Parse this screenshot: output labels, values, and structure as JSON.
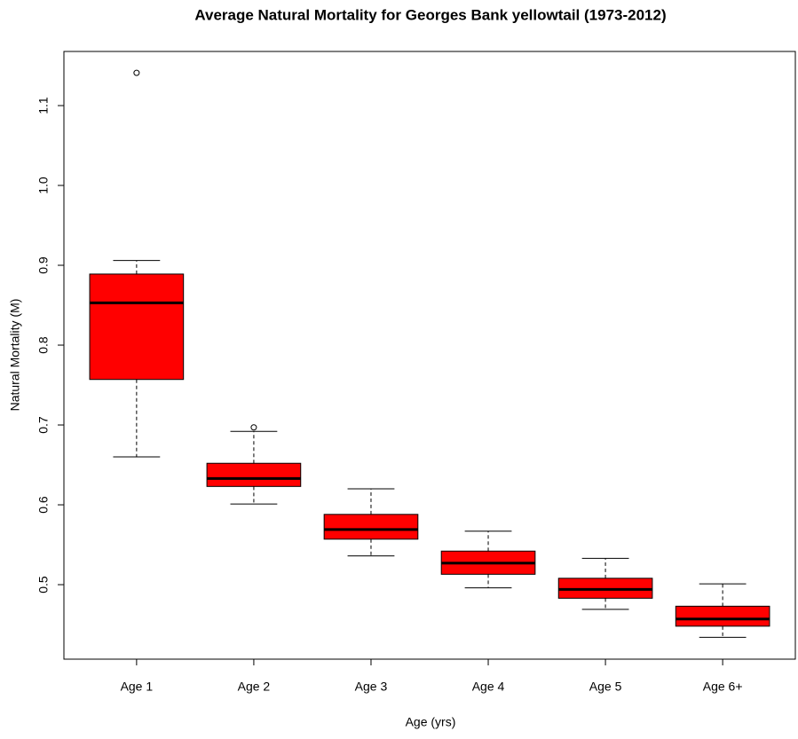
{
  "chart_data": {
    "type": "box",
    "title": "Average Natural Mortality for Georges Bank yellowtail (1973-2012)",
    "x_label": "Age (yrs)",
    "y_label": "Natural Mortality (M)",
    "categories": [
      "Age 1",
      "Age 2",
      "Age 3",
      "Age 4",
      "Age 5",
      "Age 6+"
    ],
    "whisker_low": [
      0.66,
      0.601,
      0.536,
      0.496,
      0.469,
      0.434
    ],
    "q1": [
      0.757,
      0.623,
      0.557,
      0.513,
      0.483,
      0.448
    ],
    "median": [
      0.853,
      0.633,
      0.569,
      0.527,
      0.494,
      0.457
    ],
    "q3": [
      0.889,
      0.652,
      0.588,
      0.542,
      0.508,
      0.473
    ],
    "whisker_high": [
      0.906,
      0.692,
      0.62,
      0.567,
      0.533,
      0.501
    ],
    "outliers": [
      [
        1.141
      ],
      [
        0.697
      ],
      [],
      [],
      [],
      []
    ],
    "color": "#ff0000",
    "ylim": [
      0.4067,
      1.1678
    ],
    "yticks": [
      0.5,
      0.6,
      0.7,
      0.8,
      0.9,
      {
        "value": 1,
        "label": "1.0"
      },
      1.1
    ]
  }
}
